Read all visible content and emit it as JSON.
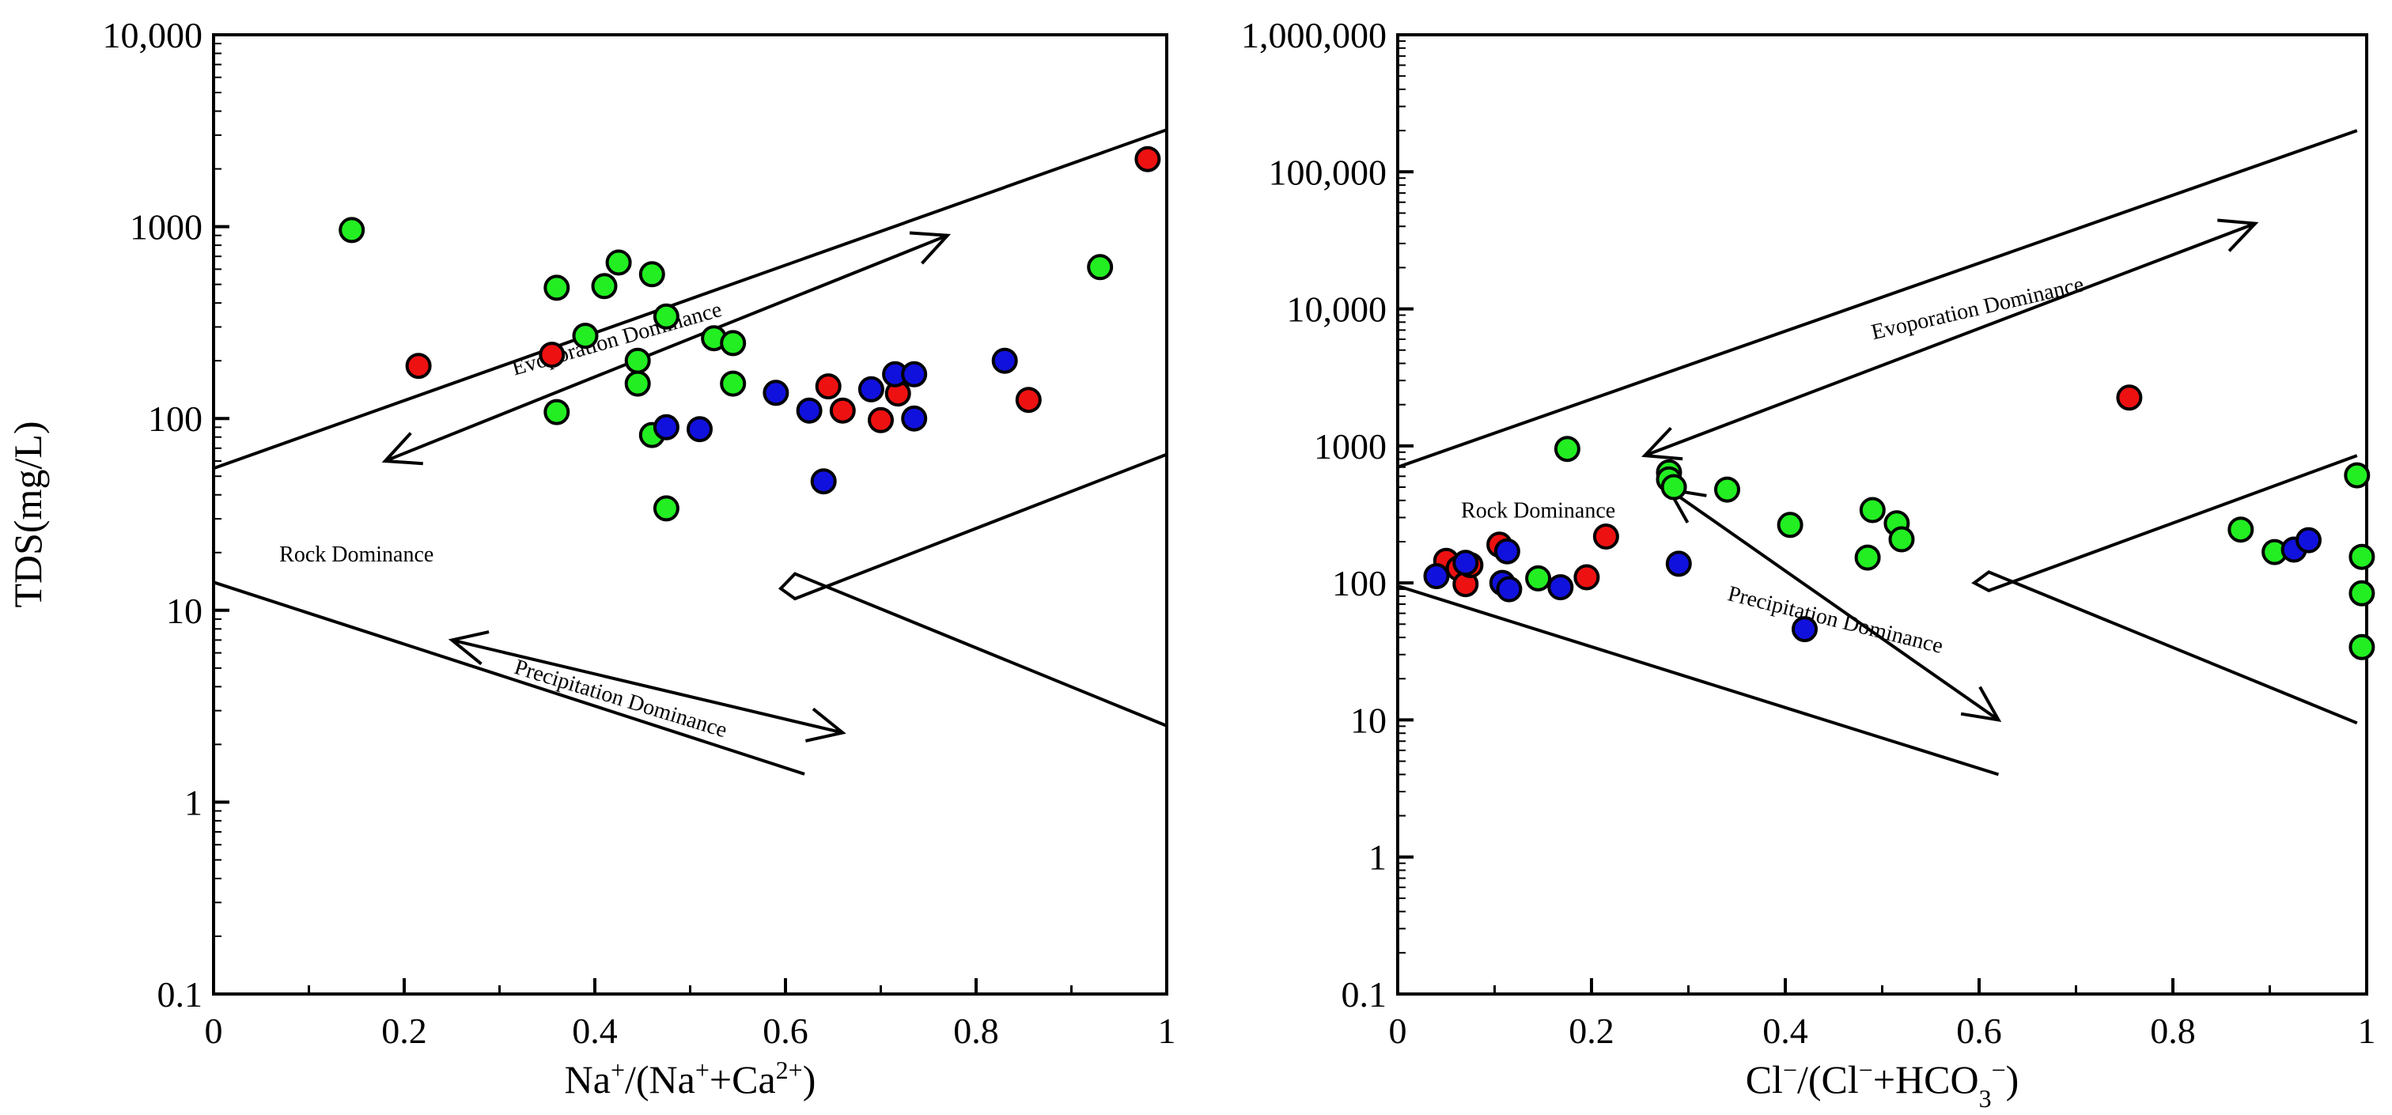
{
  "colors": {
    "green": "#22ee22",
    "red": "#ee1111",
    "blue": "#1111dd"
  },
  "chart_data": [
    {
      "type": "scatter",
      "y_scale": "log",
      "ylabel": "TDS(mg/L)",
      "xlabel_parts": [
        {
          "t": "Na"
        },
        {
          "t": "+",
          "sup": true
        },
        {
          "t": "/(Na"
        },
        {
          "t": "+",
          "sup": true
        },
        {
          "t": "+Ca"
        },
        {
          "t": "2+",
          "sup": true
        },
        {
          "t": ")"
        }
      ],
      "xlim": [
        0,
        1
      ],
      "ylim": [
        0.1,
        10000
      ],
      "x_ticks": [
        {
          "v": 0,
          "label": "0"
        },
        {
          "v": 0.2,
          "label": "0.2"
        },
        {
          "v": 0.4,
          "label": "0.4"
        },
        {
          "v": 0.6,
          "label": "0.6"
        },
        {
          "v": 0.8,
          "label": "0.8"
        },
        {
          "v": 1,
          "label": "1"
        }
      ],
      "x_minor": [
        0.1,
        0.3,
        0.5,
        0.7,
        0.9
      ],
      "y_ticks": [
        {
          "v": 0.1,
          "label": "0.1"
        },
        {
          "v": 1,
          "label": "1"
        },
        {
          "v": 10,
          "label": "10"
        },
        {
          "v": 100,
          "label": "100"
        },
        {
          "v": 1000,
          "label": "1000"
        },
        {
          "v": 10000,
          "label": "10,000"
        }
      ],
      "boundaries": [
        [
          [
            0,
            55
          ],
          [
            1,
            3200
          ]
        ],
        [
          [
            0,
            14
          ],
          [
            0.62,
            1.4
          ]
        ],
        [
          [
            1,
            65
          ],
          [
            0.61,
            11.5
          ],
          [
            0.595,
            13
          ],
          [
            0.61,
            15.5
          ],
          [
            1,
            2.5
          ]
        ]
      ],
      "arrows": [
        {
          "from": [
            0.77,
            900
          ],
          "to": [
            0.18,
            60
          ]
        },
        {
          "from": [
            0.25,
            7
          ],
          "to": [
            0.66,
            2.3
          ]
        }
      ],
      "annotations": [
        {
          "text": "Evoporation Dominance",
          "x": 0.425,
          "y": 240,
          "rotate": -16
        },
        {
          "text": "Rock Dominance",
          "x": 0.15,
          "y": 18,
          "rotate": 0
        },
        {
          "text": "Precipitation Dominance",
          "x": 0.425,
          "y": 3.2,
          "rotate": 17
        }
      ],
      "series": [
        {
          "name": "green",
          "color": "#22ee22",
          "points": [
            [
              0.145,
              960
            ],
            [
              0.36,
              480
            ],
            [
              0.36,
              108
            ],
            [
              0.39,
              270
            ],
            [
              0.41,
              490
            ],
            [
              0.425,
              650
            ],
            [
              0.445,
              200
            ],
            [
              0.445,
              152
            ],
            [
              0.46,
              565
            ],
            [
              0.46,
              82
            ],
            [
              0.475,
              340
            ],
            [
              0.475,
              34
            ],
            [
              0.525,
              262
            ],
            [
              0.545,
              247
            ],
            [
              0.545,
              152
            ],
            [
              0.93,
              615
            ]
          ]
        },
        {
          "name": "red",
          "color": "#ee1111",
          "points": [
            [
              0.215,
              188
            ],
            [
              0.355,
              215
            ],
            [
              0.645,
              147
            ],
            [
              0.66,
              110
            ],
            [
              0.7,
              98
            ],
            [
              0.718,
              135
            ],
            [
              0.855,
              125
            ],
            [
              0.98,
              2250
            ]
          ]
        },
        {
          "name": "blue",
          "color": "#1111dd",
          "points": [
            [
              0.475,
              90
            ],
            [
              0.51,
              88
            ],
            [
              0.59,
              136
            ],
            [
              0.625,
              110
            ],
            [
              0.64,
              47
            ],
            [
              0.69,
              142
            ],
            [
              0.715,
              170
            ],
            [
              0.735,
              170
            ],
            [
              0.735,
              100
            ],
            [
              0.83,
              200
            ]
          ]
        }
      ]
    },
    {
      "type": "scatter",
      "y_scale": "log",
      "ylabel": "",
      "xlabel_parts": [
        {
          "t": "Cl"
        },
        {
          "t": "−",
          "sup": true
        },
        {
          "t": "/(Cl"
        },
        {
          "t": "−",
          "sup": true
        },
        {
          "t": "+HCO"
        },
        {
          "t": "3",
          "sub": true
        },
        {
          "t": "−",
          "sup": true
        },
        {
          "t": ")"
        }
      ],
      "xlim": [
        0,
        1
      ],
      "ylim": [
        0.1,
        1000000
      ],
      "x_ticks": [
        {
          "v": 0,
          "label": "0"
        },
        {
          "v": 0.2,
          "label": "0.2"
        },
        {
          "v": 0.4,
          "label": "0.4"
        },
        {
          "v": 0.6,
          "label": "0.6"
        },
        {
          "v": 0.8,
          "label": "0.8"
        },
        {
          "v": 1,
          "label": "1"
        }
      ],
      "x_minor": [
        0.1,
        0.3,
        0.5,
        0.7,
        0.9
      ],
      "y_ticks": [
        {
          "v": 0.1,
          "label": "0.1"
        },
        {
          "v": 1,
          "label": "1"
        },
        {
          "v": 10,
          "label": "10"
        },
        {
          "v": 100,
          "label": "100"
        },
        {
          "v": 1000,
          "label": "1000"
        },
        {
          "v": 10000,
          "label": "10,000"
        },
        {
          "v": 100000,
          "label": "100,000"
        },
        {
          "v": 1000000,
          "label": "1,000,000"
        }
      ],
      "boundaries": [
        [
          [
            0,
            700
          ],
          [
            0.99,
            200000
          ]
        ],
        [
          [
            0,
            95
          ],
          [
            0.62,
            4
          ]
        ],
        [
          [
            0.99,
            850
          ],
          [
            0.61,
            88
          ],
          [
            0.595,
            100
          ],
          [
            0.61,
            120
          ],
          [
            0.99,
            9.5
          ]
        ]
      ],
      "arrows": [
        {
          "from": [
            0.885,
            42000
          ],
          "to": [
            0.255,
            850
          ]
        },
        {
          "from": [
            0.28,
            480
          ],
          "to": [
            0.62,
            10
          ]
        }
      ],
      "annotations": [
        {
          "text": "Evoporation Dominance",
          "x": 0.6,
          "y": 9000,
          "rotate": -13
        },
        {
          "text": "Rock Dominance",
          "x": 0.145,
          "y": 300,
          "rotate": 0
        },
        {
          "text": "Precipitation Dominance",
          "x": 0.45,
          "y": 48,
          "rotate": 14
        }
      ],
      "series": [
        {
          "name": "green",
          "color": "#22ee22",
          "points": [
            [
              0.145,
              108
            ],
            [
              0.175,
              950
            ],
            [
              0.28,
              640
            ],
            [
              0.28,
              570
            ],
            [
              0.285,
              500
            ],
            [
              0.34,
              480
            ],
            [
              0.405,
              265
            ],
            [
              0.485,
              153
            ],
            [
              0.49,
              340
            ],
            [
              0.515,
              272
            ],
            [
              0.52,
              208
            ],
            [
              0.87,
              245
            ],
            [
              0.905,
              168
            ],
            [
              0.99,
              610
            ],
            [
              0.995,
              155
            ],
            [
              0.995,
              84
            ],
            [
              0.995,
              34
            ]
          ]
        },
        {
          "name": "red",
          "color": "#ee1111",
          "points": [
            [
              0.05,
              145
            ],
            [
              0.063,
              128
            ],
            [
              0.07,
              98
            ],
            [
              0.075,
              135
            ],
            [
              0.105,
              190
            ],
            [
              0.195,
              110
            ],
            [
              0.215,
              218
            ],
            [
              0.755,
              2250
            ]
          ]
        },
        {
          "name": "blue",
          "color": "#1111dd",
          "points": [
            [
              0.04,
              112
            ],
            [
              0.07,
              140
            ],
            [
              0.108,
              100
            ],
            [
              0.113,
              170
            ],
            [
              0.115,
              90
            ],
            [
              0.168,
              93
            ],
            [
              0.29,
              138
            ],
            [
              0.42,
              46
            ],
            [
              0.925,
              175
            ],
            [
              0.94,
              205
            ]
          ]
        }
      ]
    }
  ]
}
